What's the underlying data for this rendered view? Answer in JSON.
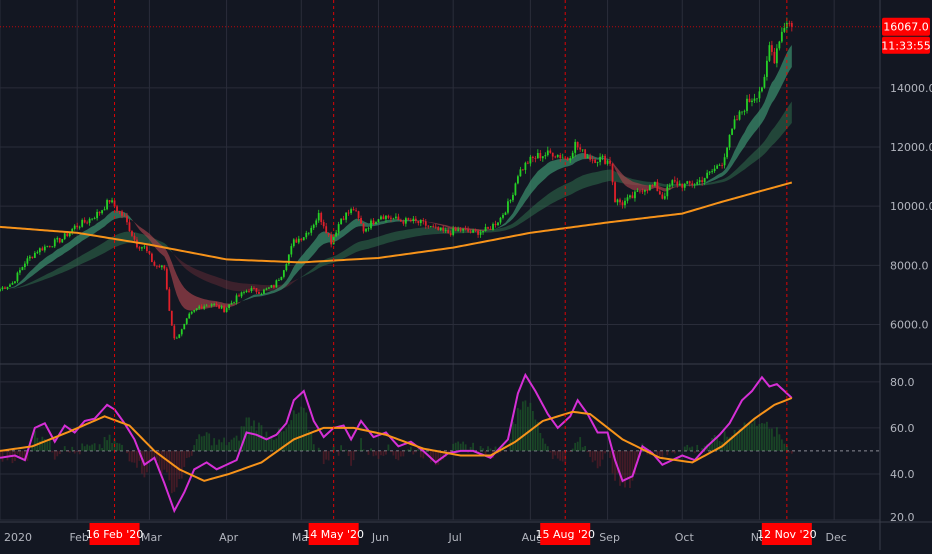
{
  "theme": {
    "background": "#131722",
    "grid": "#2a2d3a",
    "axis_text": "#b2b5be",
    "up": "#26d126",
    "down": "#e0202a",
    "ma200": "#f7931a",
    "rsi": "#d62fd6",
    "rsi_ma": "#f7931a",
    "band_green": "#3a8a6a",
    "band_red": "#a0414a",
    "marker_bg": "#ff0000",
    "price_label_bg": "#ff0000"
  },
  "price_label": "16067.0",
  "countdown_label": "11:33:55",
  "x_axis": {
    "months": [
      {
        "label": "2020",
        "day": 0
      },
      {
        "label": "Feb",
        "day": 31
      },
      {
        "label": "Mar",
        "day": 60
      },
      {
        "label": "Apr",
        "day": 91
      },
      {
        "label": "May",
        "day": 121
      },
      {
        "label": "Jun",
        "day": 152
      },
      {
        "label": "Jul",
        "day": 182
      },
      {
        "label": "Aug",
        "day": 213
      },
      {
        "label": "Sep",
        "day": 244
      },
      {
        "label": "Oct",
        "day": 274
      },
      {
        "label": "Nov",
        "day": 305
      },
      {
        "label": "Dec",
        "day": 335
      }
    ],
    "markers": [
      {
        "label": "16 Feb '20",
        "day": 46
      },
      {
        "label": "14 May '20",
        "day": 134
      },
      {
        "label": "15 Aug '20",
        "day": 227
      },
      {
        "label": "12 Nov '20",
        "day": 316
      }
    ]
  },
  "chart_data": [
    {
      "type": "candlestick",
      "title": "",
      "y_ticks": [
        "6000.0",
        "8000.0",
        "10000.0",
        "12000.0",
        "14000.0"
      ],
      "ylim": [
        4800,
        16700
      ],
      "last_price": 16067,
      "close_anchors": [
        [
          0,
          7200
        ],
        [
          5,
          7400
        ],
        [
          10,
          8100
        ],
        [
          15,
          8500
        ],
        [
          20,
          8700
        ],
        [
          25,
          8900
        ],
        [
          30,
          9300
        ],
        [
          35,
          9500
        ],
        [
          40,
          9800
        ],
        [
          44,
          10200
        ],
        [
          47,
          9900
        ],
        [
          50,
          9600
        ],
        [
          55,
          8700
        ],
        [
          58,
          8600
        ],
        [
          62,
          8000
        ],
        [
          66,
          7900
        ],
        [
          68,
          6500
        ],
        [
          70,
          5500
        ],
        [
          73,
          5800
        ],
        [
          76,
          6300
        ],
        [
          80,
          6600
        ],
        [
          85,
          6700
        ],
        [
          90,
          6500
        ],
        [
          95,
          6900
        ],
        [
          100,
          7200
        ],
        [
          105,
          7100
        ],
        [
          110,
          7300
        ],
        [
          113,
          7700
        ],
        [
          118,
          8800
        ],
        [
          122,
          9000
        ],
        [
          125,
          9300
        ],
        [
          128,
          9700
        ],
        [
          130,
          9400
        ],
        [
          133,
          8800
        ],
        [
          137,
          9600
        ],
        [
          142,
          9900
        ],
        [
          146,
          9200
        ],
        [
          150,
          9500
        ],
        [
          153,
          9700
        ],
        [
          157,
          9600
        ],
        [
          161,
          9500
        ],
        [
          165,
          9500
        ],
        [
          170,
          9400
        ],
        [
          175,
          9200
        ],
        [
          180,
          9100
        ],
        [
          185,
          9200
        ],
        [
          190,
          9100
        ],
        [
          196,
          9200
        ],
        [
          201,
          9600
        ],
        [
          205,
          10200
        ],
        [
          208,
          11100
        ],
        [
          212,
          11500
        ],
        [
          216,
          11700
        ],
        [
          222,
          11800
        ],
        [
          228,
          11600
        ],
        [
          231,
          12100
        ],
        [
          234,
          11800
        ],
        [
          238,
          11600
        ],
        [
          242,
          11600
        ],
        [
          245,
          11500
        ],
        [
          247,
          10200
        ],
        [
          250,
          10100
        ],
        [
          254,
          10300
        ],
        [
          258,
          10600
        ],
        [
          263,
          10700
        ],
        [
          266,
          10300
        ],
        [
          270,
          10800
        ],
        [
          275,
          10700
        ],
        [
          280,
          10800
        ],
        [
          285,
          11100
        ],
        [
          290,
          11500
        ],
        [
          295,
          12800
        ],
        [
          300,
          13500
        ],
        [
          304,
          13800
        ],
        [
          307,
          14200
        ],
        [
          309,
          15400
        ],
        [
          311,
          15000
        ],
        [
          313,
          15700
        ],
        [
          316,
          16300
        ],
        [
          318,
          16067
        ]
      ],
      "ma200_anchors": [
        [
          0,
          9300
        ],
        [
          31,
          9100
        ],
        [
          60,
          8700
        ],
        [
          91,
          8200
        ],
        [
          121,
          8100
        ],
        [
          152,
          8250
        ],
        [
          182,
          8600
        ],
        [
          213,
          9100
        ],
        [
          244,
          9450
        ],
        [
          274,
          9750
        ],
        [
          290,
          10150
        ],
        [
          305,
          10500
        ],
        [
          318,
          10800
        ]
      ]
    },
    {
      "type": "line",
      "title": "",
      "y_ticks": [
        "20.0",
        "40.0",
        "60.0",
        "80.0"
      ],
      "ylim": [
        20,
        86
      ],
      "level_line": 50,
      "series": [
        {
          "role": "rsi",
          "anchors": [
            [
              0,
              47
            ],
            [
              6,
              48
            ],
            [
              10,
              46
            ],
            [
              14,
              60
            ],
            [
              18,
              62
            ],
            [
              22,
              54
            ],
            [
              26,
              61
            ],
            [
              30,
              58
            ],
            [
              34,
              63
            ],
            [
              38,
              64
            ],
            [
              43,
              70
            ],
            [
              46,
              68
            ],
            [
              50,
              62
            ],
            [
              54,
              55
            ],
            [
              58,
              44
            ],
            [
              62,
              47
            ],
            [
              66,
              36
            ],
            [
              70,
              24
            ],
            [
              74,
              32
            ],
            [
              78,
              42
            ],
            [
              83,
              45
            ],
            [
              87,
              42
            ],
            [
              91,
              44
            ],
            [
              95,
              46
            ],
            [
              99,
              58
            ],
            [
              103,
              57
            ],
            [
              107,
              55
            ],
            [
              111,
              57
            ],
            [
              115,
              62
            ],
            [
              118,
              72
            ],
            [
              122,
              76
            ],
            [
              126,
              63
            ],
            [
              130,
              56
            ],
            [
              134,
              60
            ],
            [
              138,
              61
            ],
            [
              141,
              55
            ],
            [
              145,
              63
            ],
            [
              150,
              56
            ],
            [
              155,
              58
            ],
            [
              160,
              52
            ],
            [
              165,
              54
            ],
            [
              170,
              50
            ],
            [
              175,
              45
            ],
            [
              180,
              49
            ],
            [
              185,
              50
            ],
            [
              190,
              50
            ],
            [
              197,
              47
            ],
            [
              204,
              55
            ],
            [
              208,
              75
            ],
            [
              211,
              83
            ],
            [
              215,
              76
            ],
            [
              220,
              66
            ],
            [
              224,
              60
            ],
            [
              229,
              65
            ],
            [
              232,
              72
            ],
            [
              236,
              66
            ],
            [
              240,
              58
            ],
            [
              244,
              58
            ],
            [
              247,
              46
            ],
            [
              250,
              37
            ],
            [
              254,
              39
            ],
            [
              258,
              52
            ],
            [
              262,
              49
            ],
            [
              266,
              44
            ],
            [
              270,
              46
            ],
            [
              274,
              48
            ],
            [
              279,
              46
            ],
            [
              284,
              52
            ],
            [
              289,
              57
            ],
            [
              293,
              62
            ],
            [
              298,
              72
            ],
            [
              302,
              76
            ],
            [
              306,
              82
            ],
            [
              309,
              78
            ],
            [
              312,
              79
            ],
            [
              315,
              76
            ],
            [
              318,
              73
            ]
          ]
        },
        {
          "role": "rsi-ma",
          "anchors": [
            [
              0,
              50
            ],
            [
              13,
              52
            ],
            [
              27,
              58
            ],
            [
              42,
              65
            ],
            [
              52,
              61
            ],
            [
              62,
              50
            ],
            [
              72,
              42
            ],
            [
              82,
              37
            ],
            [
              92,
              40
            ],
            [
              105,
              45
            ],
            [
              118,
              55
            ],
            [
              130,
              60
            ],
            [
              142,
              60
            ],
            [
              155,
              57
            ],
            [
              170,
              51
            ],
            [
              185,
              48
            ],
            [
              197,
              48
            ],
            [
              207,
              54
            ],
            [
              218,
              63
            ],
            [
              230,
              67
            ],
            [
              237,
              66
            ],
            [
              250,
              55
            ],
            [
              265,
              47
            ],
            [
              278,
              45
            ],
            [
              290,
              52
            ],
            [
              303,
              64
            ],
            [
              311,
              70
            ],
            [
              318,
              73
            ]
          ]
        }
      ]
    }
  ]
}
